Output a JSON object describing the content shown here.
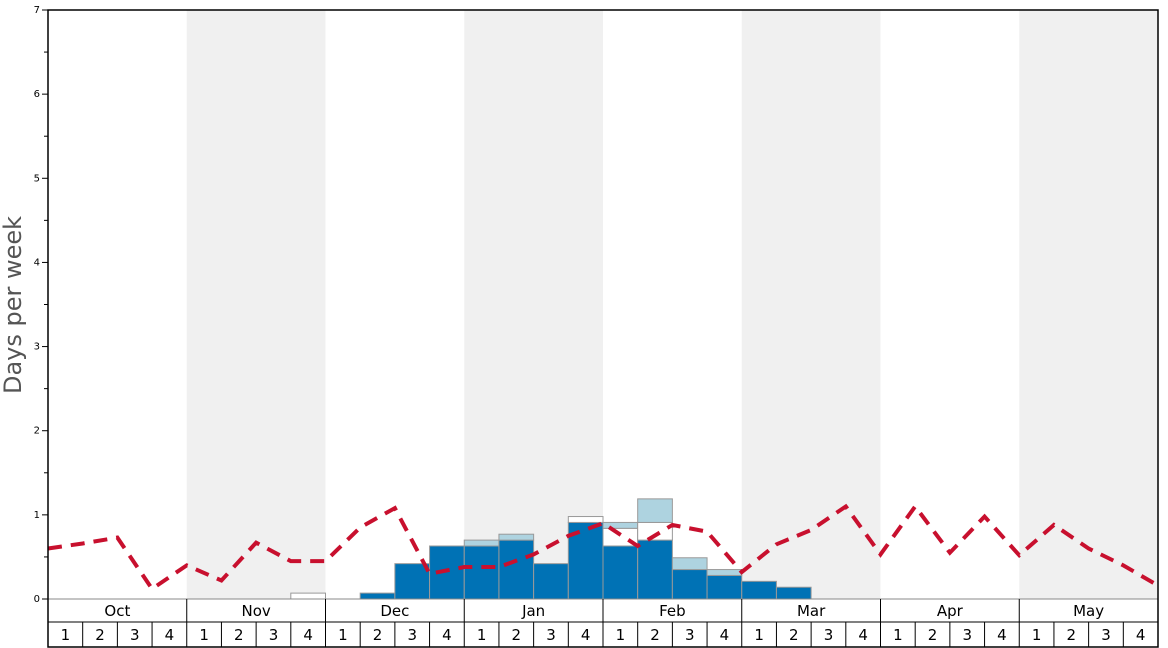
{
  "chart_data": {
    "type": "bar",
    "ylabel": "Days per week",
    "months": [
      "Oct",
      "Nov",
      "Dec",
      "Jan",
      "Feb",
      "Mar",
      "Apr",
      "May"
    ],
    "categories": [
      "1",
      "2",
      "3",
      "4",
      "1",
      "2",
      "3",
      "4",
      "1",
      "2",
      "3",
      "4",
      "1",
      "2",
      "3",
      "4",
      "1",
      "2",
      "3",
      "4",
      "1",
      "2",
      "3",
      "4",
      "1",
      "2",
      "3",
      "4",
      "1",
      "2",
      "3",
      "4"
    ],
    "series": [
      {
        "color": "#0072b5",
        "values": [
          0,
          0,
          0,
          0,
          0,
          0,
          0,
          0,
          0,
          0.07,
          0.42,
          0.63,
          0.63,
          0.7,
          0.42,
          0.91,
          0.63,
          0.7,
          0.35,
          0.28,
          0.21,
          0.14,
          0,
          0,
          0,
          0,
          0,
          0,
          0,
          0,
          0,
          0
        ]
      },
      {
        "color": "#ffffff",
        "values": [
          0,
          0,
          0,
          0,
          0,
          0,
          0,
          0.07,
          0,
          0,
          0,
          0,
          0,
          0,
          0,
          0.07,
          0.21,
          0.21,
          0,
          0,
          0,
          0,
          0,
          0,
          0,
          0,
          0,
          0,
          0,
          0,
          0,
          0
        ]
      },
      {
        "color": "#aed3e0",
        "values": [
          0,
          0,
          0,
          0,
          0,
          0,
          0,
          0,
          0,
          0,
          0,
          0,
          0.07,
          0.07,
          0,
          0,
          0.07,
          0.28,
          0.14,
          0.07,
          0,
          0,
          0,
          0,
          0,
          0,
          0,
          0,
          0,
          0,
          0,
          0
        ]
      }
    ],
    "line": {
      "type": "line",
      "color": "#c8102e",
      "dashed": true,
      "x": [
        0,
        1,
        2,
        3,
        4,
        5,
        6,
        7,
        8,
        9,
        10,
        11,
        12,
        13,
        14,
        15,
        16,
        17,
        18,
        19,
        20,
        21,
        22,
        23,
        24,
        25,
        26,
        27,
        28,
        29,
        30,
        31,
        32
      ],
      "values": [
        0.6,
        0.66,
        0.73,
        0.12,
        0.4,
        0.22,
        0.67,
        0.45,
        0.45,
        0.85,
        1.08,
        0.3,
        0.38,
        0.38,
        0.53,
        0.75,
        0.9,
        0.63,
        0.88,
        0.8,
        0.32,
        0.65,
        0.82,
        1.1,
        0.53,
        1.1,
        0.55,
        0.98,
        0.52,
        0.88,
        0.6,
        0.4,
        0.16
      ]
    },
    "xlim": [
      0,
      32
    ],
    "ylim": [
      0,
      7
    ],
    "yticks": [
      0,
      1,
      2,
      3,
      4,
      5,
      6,
      7
    ],
    "yminorticks": [
      0.5,
      1.5,
      2.5,
      3.5,
      4.5,
      5.5,
      6.5
    ]
  }
}
